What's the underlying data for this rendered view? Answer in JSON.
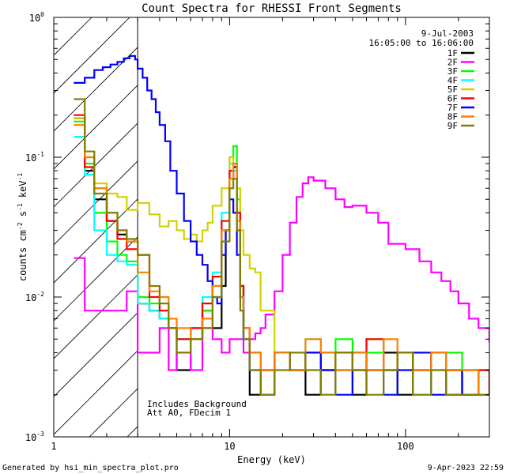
{
  "chart_data": {
    "type": "line",
    "title": "Count Spectra for RHESSI Front Segments",
    "xlabel": "Energy (keV)",
    "ylabel_parts": {
      "pre": "counts cm",
      "exp1": "-2",
      "mid1": " s",
      "exp2": "-1",
      "mid2": " keV",
      "exp3": "-1"
    },
    "xscale": "log",
    "yscale": "log",
    "xlim": [
      1,
      300
    ],
    "ylim": [
      0.001,
      1
    ],
    "x_ticks": [
      {
        "value": 1,
        "label": "1"
      },
      {
        "value": 10,
        "label": "10"
      },
      {
        "value": 100,
        "label": "100"
      }
    ],
    "y_ticks": [
      {
        "value": 0.001,
        "base": "10",
        "exp": "-3"
      },
      {
        "value": 0.01,
        "base": "10",
        "exp": "-2"
      },
      {
        "value": 0.1,
        "base": "10",
        "exp": "-1"
      },
      {
        "value": 1,
        "base": "10",
        "exp": "0"
      }
    ],
    "shaded_region_x": [
      1,
      3
    ],
    "date_label": "9-Jul-2003",
    "time_label": "16:05:00 to 16:06:00",
    "annotation_lines": [
      "Includes Background",
      "Att A0, FDecim 1"
    ],
    "legend_position": "top-right",
    "series": [
      {
        "name": "1F",
        "color": "#000000",
        "energies": [
          1.3,
          1.5,
          1.7,
          2.0,
          2.3,
          2.6,
          3.0,
          3.5,
          4.0,
          4.5,
          5.0,
          6.0,
          7.0,
          8.0,
          9.0,
          9.5,
          10.0,
          10.5,
          11.0,
          11.5,
          12.0,
          13.0,
          15.0,
          18.0,
          22.0,
          27.0,
          33.0,
          40.0,
          50.0,
          60.0,
          75.0,
          90.0,
          110.0,
          140.0,
          170.0,
          210.0,
          260.0,
          300.0
        ],
        "values": [
          0.19,
          0.08,
          0.05,
          0.035,
          0.028,
          0.025,
          0.009,
          0.008,
          0.007,
          0.006,
          0.003,
          0.005,
          0.008,
          0.006,
          0.012,
          0.03,
          0.07,
          0.085,
          0.04,
          0.012,
          0.005,
          0.002,
          0.003,
          0.004,
          0.003,
          0.002,
          0.004,
          0.003,
          0.002,
          0.003,
          0.004,
          0.002,
          0.003,
          0.004,
          0.002,
          0.003,
          0.002,
          0.002
        ]
      },
      {
        "name": "2F",
        "color": "#ff00ff",
        "energies": [
          1.3,
          1.5,
          1.7,
          2.0,
          2.3,
          2.6,
          3.0,
          3.5,
          4.0,
          4.5,
          5.0,
          6.0,
          7.0,
          8.0,
          9.0,
          10.0,
          11.0,
          12.0,
          13.0,
          14.0,
          15.0,
          16.0,
          18.0,
          20.0,
          22.0,
          24.0,
          26.0,
          28.0,
          30.0,
          35.0,
          40.0,
          45.0,
          50.0,
          60.0,
          70.0,
          80.0,
          100.0,
          120.0,
          140.0,
          160.0,
          180.0,
          200.0,
          230.0,
          260.0,
          300.0
        ],
        "values": [
          0.019,
          0.008,
          0.008,
          0.008,
          0.008,
          0.011,
          0.004,
          0.004,
          0.006,
          0.003,
          0.004,
          0.003,
          0.006,
          0.005,
          0.004,
          0.005,
          0.005,
          0.004,
          0.005,
          0.0055,
          0.006,
          0.0075,
          0.011,
          0.02,
          0.034,
          0.052,
          0.065,
          0.072,
          0.068,
          0.06,
          0.05,
          0.044,
          0.045,
          0.04,
          0.034,
          0.024,
          0.022,
          0.018,
          0.015,
          0.013,
          0.011,
          0.009,
          0.007,
          0.006,
          0.0048
        ]
      },
      {
        "name": "3F",
        "color": "#00ff00",
        "energies": [
          1.3,
          1.5,
          1.7,
          2.0,
          2.3,
          2.6,
          3.0,
          3.5,
          4.0,
          4.5,
          5.0,
          6.0,
          7.0,
          8.0,
          9.0,
          10.0,
          10.5,
          11.0,
          11.5,
          12.0,
          13.0,
          15.0,
          18.0,
          22.0,
          27.0,
          33.0,
          40.0,
          50.0,
          60.0,
          75.0,
          90.0,
          110.0,
          140.0,
          170.0,
          210.0,
          260.0,
          300.0
        ],
        "values": [
          0.18,
          0.09,
          0.04,
          0.025,
          0.02,
          0.018,
          0.01,
          0.009,
          0.008,
          0.006,
          0.005,
          0.006,
          0.008,
          0.012,
          0.03,
          0.1,
          0.12,
          0.05,
          0.012,
          0.006,
          0.004,
          0.003,
          0.004,
          0.003,
          0.004,
          0.003,
          0.005,
          0.003,
          0.004,
          0.003,
          0.004,
          0.002,
          0.003,
          0.004,
          0.002,
          0.003,
          0.002
        ]
      },
      {
        "name": "4F",
        "color": "#00ffff",
        "energies": [
          1.3,
          1.5,
          1.7,
          2.0,
          2.3,
          2.6,
          3.0,
          3.5,
          4.0,
          4.5,
          5.0,
          6.0,
          7.0,
          8.0,
          9.0,
          10.0,
          10.5,
          11.0,
          11.5,
          12.0,
          13.0,
          15.0,
          18.0,
          22.0,
          27.0,
          33.0,
          40.0,
          50.0,
          60.0,
          75.0,
          90.0,
          110.0,
          140.0,
          170.0,
          210.0,
          260.0,
          300.0
        ],
        "values": [
          0.14,
          0.075,
          0.03,
          0.02,
          0.018,
          0.017,
          0.009,
          0.008,
          0.007,
          0.006,
          0.005,
          0.006,
          0.01,
          0.015,
          0.04,
          0.09,
          0.08,
          0.03,
          0.01,
          0.005,
          0.004,
          0.003,
          0.004,
          0.003,
          0.005,
          0.004,
          0.003,
          0.004,
          0.005,
          0.003,
          0.004,
          0.003,
          0.004,
          0.003,
          0.002,
          0.003,
          0.002
        ]
      },
      {
        "name": "5F",
        "color": "#d2d200",
        "energies": [
          1.3,
          1.5,
          1.7,
          2.0,
          2.3,
          2.6,
          3.0,
          3.5,
          4.0,
          4.5,
          5.0,
          5.5,
          6.0,
          6.5,
          7.0,
          7.5,
          8.0,
          9.0,
          10.0,
          10.5,
          11.0,
          11.5,
          12.0,
          13.0,
          14.0,
          15.0,
          18.0,
          22.0,
          27.0,
          33.0,
          40.0,
          50.0,
          60.0,
          75.0,
          90.0,
          110.0,
          140.0,
          170.0,
          210.0,
          260.0,
          300.0
        ],
        "values": [
          0.19,
          0.1,
          0.065,
          0.055,
          0.052,
          0.042,
          0.047,
          0.039,
          0.032,
          0.035,
          0.03,
          0.026,
          0.028,
          0.025,
          0.03,
          0.034,
          0.045,
          0.06,
          0.1,
          0.09,
          0.06,
          0.03,
          0.02,
          0.016,
          0.015,
          0.008,
          0.004,
          0.003,
          0.004,
          0.003,
          0.004,
          0.003,
          0.005,
          0.003,
          0.004,
          0.003,
          0.004,
          0.003,
          0.003,
          0.002,
          0.002
        ]
      },
      {
        "name": "6F",
        "color": "#ff0000",
        "energies": [
          1.3,
          1.5,
          1.7,
          2.0,
          2.3,
          2.6,
          3.0,
          3.5,
          4.0,
          4.5,
          5.0,
          6.0,
          7.0,
          8.0,
          9.0,
          10.0,
          10.5,
          11.0,
          11.5,
          12.0,
          13.0,
          15.0,
          18.0,
          22.0,
          27.0,
          33.0,
          40.0,
          50.0,
          60.0,
          75.0,
          90.0,
          110.0,
          140.0,
          170.0,
          210.0,
          260.0,
          300.0
        ],
        "values": [
          0.2,
          0.085,
          0.06,
          0.035,
          0.026,
          0.022,
          0.02,
          0.01,
          0.008,
          0.006,
          0.005,
          0.006,
          0.009,
          0.014,
          0.035,
          0.08,
          0.09,
          0.04,
          0.012,
          0.006,
          0.004,
          0.003,
          0.004,
          0.003,
          0.004,
          0.003,
          0.004,
          0.003,
          0.005,
          0.003,
          0.004,
          0.003,
          0.004,
          0.003,
          0.002,
          0.003,
          0.002
        ]
      },
      {
        "name": "7F",
        "color": "#0000ff",
        "energies": [
          1.3,
          1.5,
          1.7,
          1.9,
          2.1,
          2.3,
          2.5,
          2.7,
          2.9,
          3.0,
          3.2,
          3.4,
          3.6,
          3.8,
          4.0,
          4.3,
          4.6,
          5.0,
          5.5,
          6.0,
          6.5,
          7.0,
          7.5,
          8.0,
          8.5,
          9.0,
          9.5,
          10.0,
          10.5,
          11.0,
          11.5,
          12.0,
          13.0,
          15.0,
          18.0,
          22.0,
          27.0,
          33.0,
          40.0,
          50.0,
          60.0,
          75.0,
          90.0,
          110.0,
          140.0,
          170.0,
          210.0,
          260.0,
          300.0
        ],
        "values": [
          0.34,
          0.37,
          0.42,
          0.44,
          0.46,
          0.48,
          0.51,
          0.53,
          0.5,
          0.43,
          0.37,
          0.3,
          0.26,
          0.21,
          0.17,
          0.13,
          0.08,
          0.055,
          0.035,
          0.025,
          0.02,
          0.017,
          0.013,
          0.01,
          0.009,
          0.02,
          0.03,
          0.05,
          0.04,
          0.02,
          0.01,
          0.005,
          0.003,
          0.002,
          0.004,
          0.003,
          0.004,
          0.003,
          0.002,
          0.004,
          0.003,
          0.002,
          0.003,
          0.004,
          0.002,
          0.003,
          0.002,
          0.002,
          0.002
        ]
      },
      {
        "name": "8F",
        "color": "#ff8000",
        "energies": [
          1.3,
          1.5,
          1.7,
          2.0,
          2.3,
          2.6,
          3.0,
          3.5,
          4.0,
          4.5,
          5.0,
          6.0,
          7.0,
          8.0,
          9.0,
          10.0,
          10.5,
          11.0,
          11.5,
          12.0,
          13.0,
          15.0,
          18.0,
          22.0,
          27.0,
          33.0,
          40.0,
          50.0,
          60.0,
          75.0,
          90.0,
          110.0,
          140.0,
          170.0,
          210.0,
          260.0,
          300.0
        ],
        "values": [
          0.17,
          0.1,
          0.06,
          0.04,
          0.03,
          0.025,
          0.015,
          0.011,
          0.01,
          0.007,
          0.006,
          0.005,
          0.007,
          0.012,
          0.03,
          0.07,
          0.09,
          0.035,
          0.01,
          0.006,
          0.004,
          0.003,
          0.004,
          0.003,
          0.005,
          0.004,
          0.003,
          0.004,
          0.003,
          0.005,
          0.004,
          0.003,
          0.004,
          0.003,
          0.003,
          0.002,
          0.002
        ]
      },
      {
        "name": "9F",
        "color": "#808000",
        "energies": [
          1.3,
          1.5,
          1.7,
          2.0,
          2.3,
          2.6,
          3.0,
          3.5,
          4.0,
          4.5,
          5.0,
          6.0,
          7.0,
          8.0,
          9.0,
          10.0,
          10.5,
          11.0,
          11.5,
          12.0,
          13.0,
          15.0,
          18.0,
          22.0,
          27.0,
          33.0,
          40.0,
          50.0,
          60.0,
          75.0,
          90.0,
          110.0,
          140.0,
          170.0,
          210.0,
          260.0,
          300.0
        ],
        "values": [
          0.26,
          0.11,
          0.055,
          0.04,
          0.03,
          0.026,
          0.02,
          0.012,
          0.009,
          0.006,
          0.004,
          0.005,
          0.006,
          0.01,
          0.025,
          0.06,
          0.07,
          0.03,
          0.008,
          0.005,
          0.003,
          0.002,
          0.003,
          0.004,
          0.003,
          0.002,
          0.004,
          0.003,
          0.002,
          0.003,
          0.004,
          0.002,
          0.003,
          0.002,
          0.002,
          0.002,
          0.002
        ]
      }
    ]
  },
  "footer": {
    "generated_by": "Generated by hsi_min_spectra_plot.pro",
    "timestamp": "9-Apr-2023 22:59"
  }
}
